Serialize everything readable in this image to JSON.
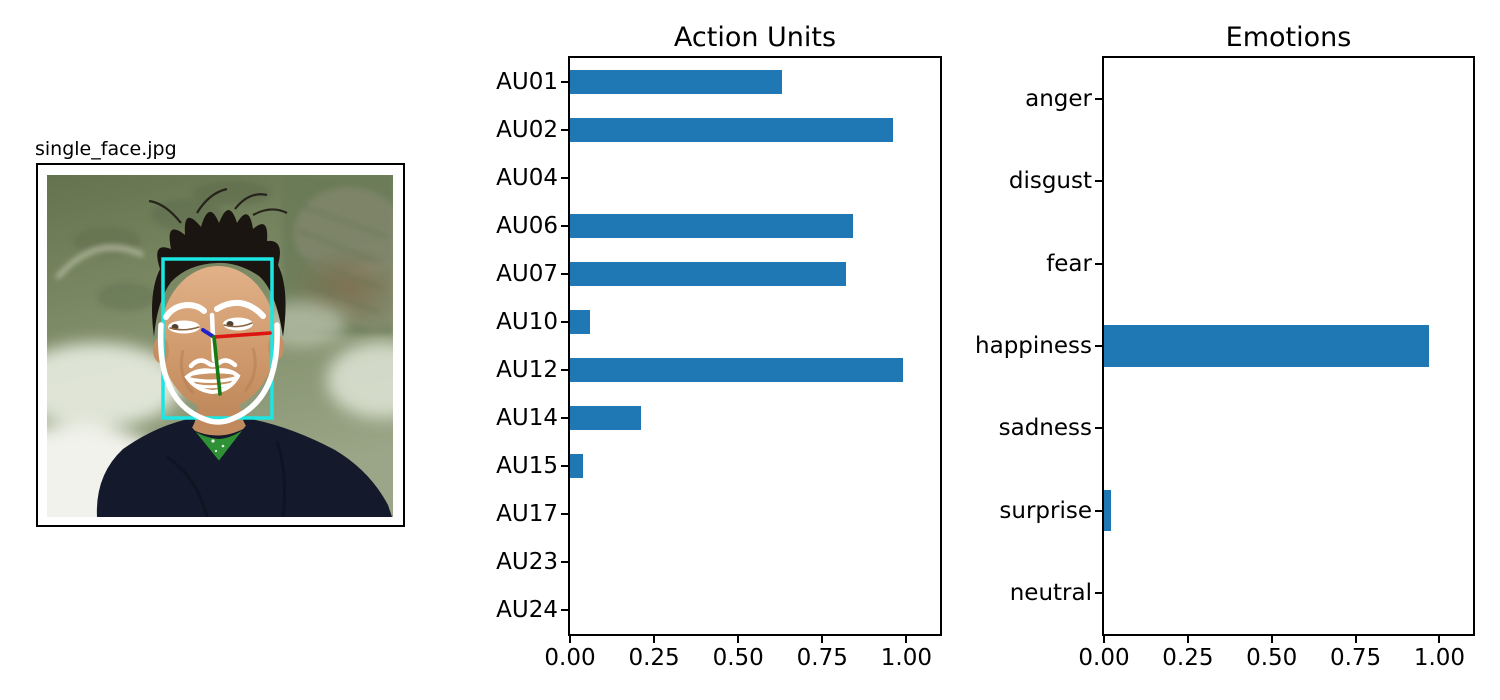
{
  "image_panel": {
    "title": "single_face.jpg",
    "annotations": {
      "face_box_color": "#1ce6e2",
      "landmark_color": "#ffffff",
      "pose_x_color": "#dd1510",
      "pose_y_color": "#157a16",
      "pose_z_color": "#2222cc"
    }
  },
  "chart_data": [
    {
      "type": "bar",
      "orientation": "horizontal",
      "title": "Action Units",
      "categories": [
        "AU01",
        "AU02",
        "AU04",
        "AU06",
        "AU07",
        "AU10",
        "AU12",
        "AU14",
        "AU15",
        "AU17",
        "AU23",
        "AU24"
      ],
      "values": [
        0.63,
        0.96,
        0.0,
        0.84,
        0.82,
        0.06,
        0.99,
        0.21,
        0.04,
        0.0,
        0.0,
        0.0
      ],
      "xticks": [
        "0.00",
        "0.25",
        "0.50",
        "0.75",
        "1.00"
      ],
      "xtick_values": [
        0,
        0.25,
        0.5,
        0.75,
        1.0
      ],
      "xlim": [
        0,
        1.1
      ],
      "bar_color": "#1f77b4",
      "grid": false,
      "xlabel": "",
      "ylabel": ""
    },
    {
      "type": "bar",
      "orientation": "horizontal",
      "title": "Emotions",
      "categories": [
        "anger",
        "disgust",
        "fear",
        "happiness",
        "sadness",
        "surprise",
        "neutral"
      ],
      "values": [
        0.0,
        0.0,
        0.0,
        0.97,
        0.0,
        0.02,
        0.0
      ],
      "xticks": [
        "0.00",
        "0.25",
        "0.50",
        "0.75",
        "1.00"
      ],
      "xtick_values": [
        0,
        0.25,
        0.5,
        0.75,
        1.0
      ],
      "xlim": [
        0,
        1.1
      ],
      "bar_color": "#1f77b4",
      "grid": false,
      "xlabel": "",
      "ylabel": ""
    }
  ]
}
